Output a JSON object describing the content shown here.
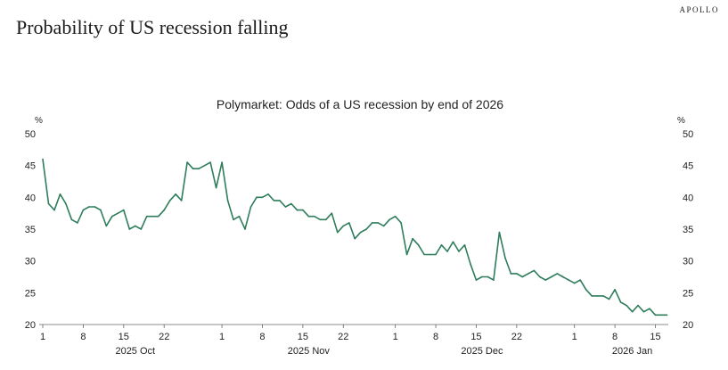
{
  "header": {
    "brand": "APOLLO",
    "headline": "Probability of US recession falling"
  },
  "chart_data": {
    "type": "line",
    "title": "Polymarket: Odds of a US recession by end of 2026",
    "y_unit": "%",
    "ylim": [
      20,
      50
    ],
    "y_ticks": [
      20,
      25,
      30,
      35,
      40,
      45,
      50
    ],
    "x_range_days": [
      0,
      107
    ],
    "x_day_ticks": [
      {
        "day": 0,
        "label": "1"
      },
      {
        "day": 7,
        "label": "8"
      },
      {
        "day": 14,
        "label": "15"
      },
      {
        "day": 21,
        "label": "22"
      },
      {
        "day": 31,
        "label": "1"
      },
      {
        "day": 38,
        "label": "8"
      },
      {
        "day": 45,
        "label": "15"
      },
      {
        "day": 52,
        "label": "22"
      },
      {
        "day": 61,
        "label": "1"
      },
      {
        "day": 68,
        "label": "8"
      },
      {
        "day": 75,
        "label": "15"
      },
      {
        "day": 82,
        "label": "22"
      },
      {
        "day": 92,
        "label": "1"
      },
      {
        "day": 99,
        "label": "8"
      },
      {
        "day": 106,
        "label": "15"
      }
    ],
    "month_labels": [
      {
        "day": 16,
        "label": "2025 Oct"
      },
      {
        "day": 46,
        "label": "2025 Nov"
      },
      {
        "day": 76,
        "label": "2025 Dec"
      },
      {
        "day": 102,
        "label": "2026 Jan"
      }
    ],
    "series": [
      {
        "name": "Odds of a US recession by end of 2026",
        "color": "#2e7d5b",
        "values": [
          46,
          39,
          38,
          40.5,
          39,
          36.5,
          36,
          38,
          38.5,
          38.5,
          38,
          35.5,
          37,
          37.5,
          38,
          35,
          35.5,
          35,
          37,
          37,
          37,
          38,
          39.5,
          40.5,
          39.5,
          45.5,
          44.5,
          44.5,
          45,
          45.5,
          41.5,
          45.5,
          39.5,
          36.5,
          37,
          35,
          38.5,
          40,
          40,
          40.5,
          39.5,
          39.5,
          38.5,
          39,
          38,
          38,
          37,
          37,
          36.5,
          36.5,
          37.5,
          34.5,
          35.5,
          36,
          33.5,
          34.5,
          35,
          36,
          36,
          35.5,
          36.5,
          37,
          36,
          31,
          33.5,
          32.5,
          31,
          31,
          31,
          32.5,
          31.5,
          33,
          31.5,
          32.5,
          29.5,
          27,
          27.5,
          27.5,
          27,
          34.5,
          30.5,
          28,
          28,
          27.5,
          28,
          28.5,
          27.5,
          27,
          27.5,
          28,
          27.5,
          27,
          26.5,
          27,
          25.5,
          24.5,
          24.5,
          24.5,
          24,
          25.5,
          23.5,
          23,
          22,
          23,
          22,
          22.5,
          21.5,
          21.5,
          21.5
        ]
      }
    ]
  }
}
